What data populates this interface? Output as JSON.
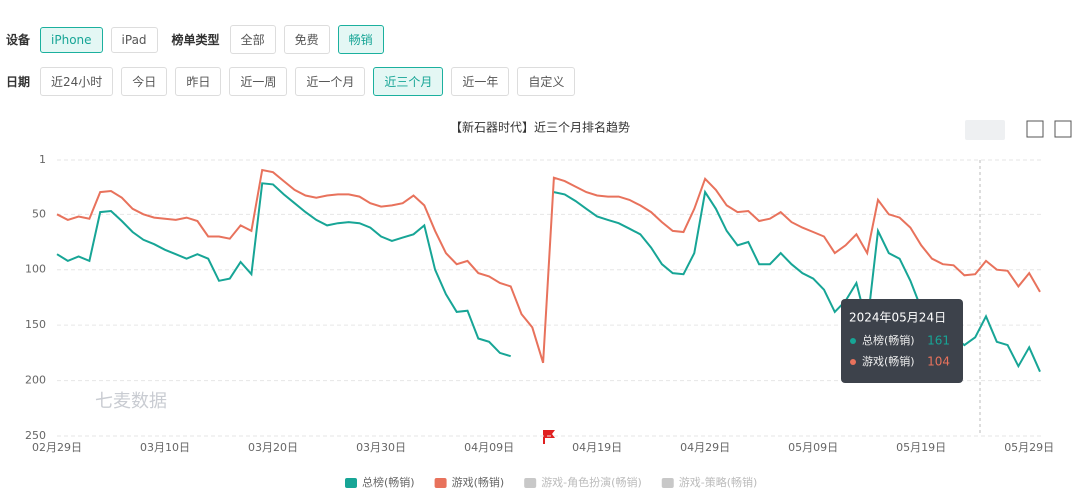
{
  "filters": {
    "device_label": "设备",
    "devices": [
      "iPhone",
      "iPad"
    ],
    "active_device": 0,
    "list_type_label": "榜单类型",
    "list_types": [
      "全部",
      "免费",
      "畅销"
    ],
    "active_list_type": 2,
    "date_label": "日期",
    "dates": [
      "近24小时",
      "今日",
      "昨日",
      "近一周",
      "近一个月",
      "近三个月",
      "近一年",
      "自定义"
    ],
    "active_date": 5
  },
  "chart_data": {
    "type": "line",
    "title": "【新石器时代】近三个月排名趋势",
    "watermark": "七麦数据",
    "y_reversed": true,
    "grid": true,
    "categories": [
      "02月29日",
      null,
      null,
      null,
      null,
      null,
      null,
      null,
      null,
      null,
      "03月10日",
      null,
      null,
      null,
      null,
      null,
      null,
      null,
      null,
      null,
      "03月20日",
      null,
      null,
      null,
      null,
      null,
      null,
      null,
      null,
      null,
      "03月30日",
      null,
      null,
      null,
      null,
      null,
      null,
      null,
      null,
      null,
      "04月09日",
      null,
      null,
      null,
      null,
      null,
      null,
      null,
      null,
      null,
      "04月19日",
      null,
      null,
      null,
      null,
      null,
      null,
      null,
      null,
      null,
      "04月29日",
      null,
      null,
      null,
      null,
      null,
      null,
      null,
      null,
      null,
      "05月09日",
      null,
      null,
      null,
      null,
      null,
      null,
      null,
      null,
      null,
      "05月19日",
      null,
      null,
      null,
      null,
      null,
      null,
      null,
      null,
      null,
      "05月29日",
      null
    ],
    "ylim": [
      1,
      250
    ],
    "yticks": [
      1,
      50,
      100,
      150,
      200,
      250
    ],
    "series": [
      {
        "name": "总榜(畅销)",
        "color": "#17a596",
        "values": [
          86,
          92,
          88,
          92,
          48,
          47,
          56,
          66,
          73,
          77,
          82,
          86,
          90,
          86,
          90,
          110,
          108,
          93,
          104,
          22,
          23,
          32,
          40,
          48,
          55,
          60,
          58,
          57,
          58,
          62,
          70,
          74,
          71,
          68,
          60,
          100,
          122,
          138,
          137,
          162,
          165,
          175,
          178,
          null,
          null,
          null,
          30,
          32,
          38,
          45,
          52,
          55,
          58,
          63,
          68,
          80,
          95,
          103,
          104,
          85,
          30,
          45,
          65,
          78,
          75,
          95,
          95,
          85,
          95,
          103,
          108,
          118,
          138,
          128,
          112,
          150,
          65,
          85,
          90,
          110,
          135,
          150,
          158,
          160,
          168,
          161,
          142,
          165,
          168,
          187,
          170,
          192
        ]
      },
      {
        "name": "游戏(畅销)",
        "color": "#e8725c",
        "values": [
          50,
          55,
          52,
          54,
          30,
          29,
          35,
          45,
          50,
          53,
          54,
          55,
          53,
          56,
          70,
          70,
          72,
          60,
          65,
          10,
          12,
          20,
          28,
          33,
          35,
          33,
          32,
          32,
          34,
          40,
          43,
          42,
          40,
          33,
          42,
          65,
          85,
          95,
          92,
          103,
          106,
          112,
          115,
          140,
          152,
          184,
          17,
          20,
          25,
          30,
          33,
          34,
          34,
          37,
          42,
          48,
          57,
          65,
          66,
          45,
          18,
          28,
          42,
          48,
          47,
          56,
          54,
          48,
          57,
          62,
          66,
          70,
          85,
          78,
          68,
          85,
          37,
          50,
          53,
          62,
          78,
          90,
          95,
          96,
          105,
          104,
          92,
          100,
          101,
          115,
          103,
          120
        ]
      }
    ],
    "legend_hidden": [
      {
        "name": "游戏-角色扮演(畅销)",
        "color": "#c8c8c8"
      },
      {
        "name": "游戏-策略(畅销)",
        "color": "#c8c8c8"
      }
    ],
    "tooltip": {
      "title": "2024年05月24日"
    }
  }
}
